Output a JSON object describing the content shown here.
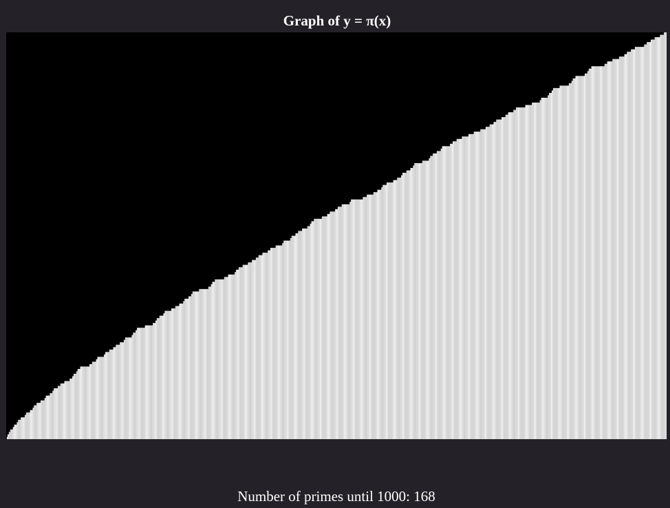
{
  "chart_data": {
    "type": "bar",
    "title": "Graph of y = π(x)",
    "function": "prime-counting",
    "x_range": [
      1,
      1000
    ],
    "ylim": [
      0,
      168
    ],
    "colors": {
      "plot_background": "#000000",
      "bar": "#ffffff",
      "bar_edge": "#a0a0a0",
      "page_background": "#242228"
    },
    "grid": false,
    "legend": "none"
  },
  "summary": {
    "label": "Number of primes until 1000:",
    "value": "168"
  }
}
